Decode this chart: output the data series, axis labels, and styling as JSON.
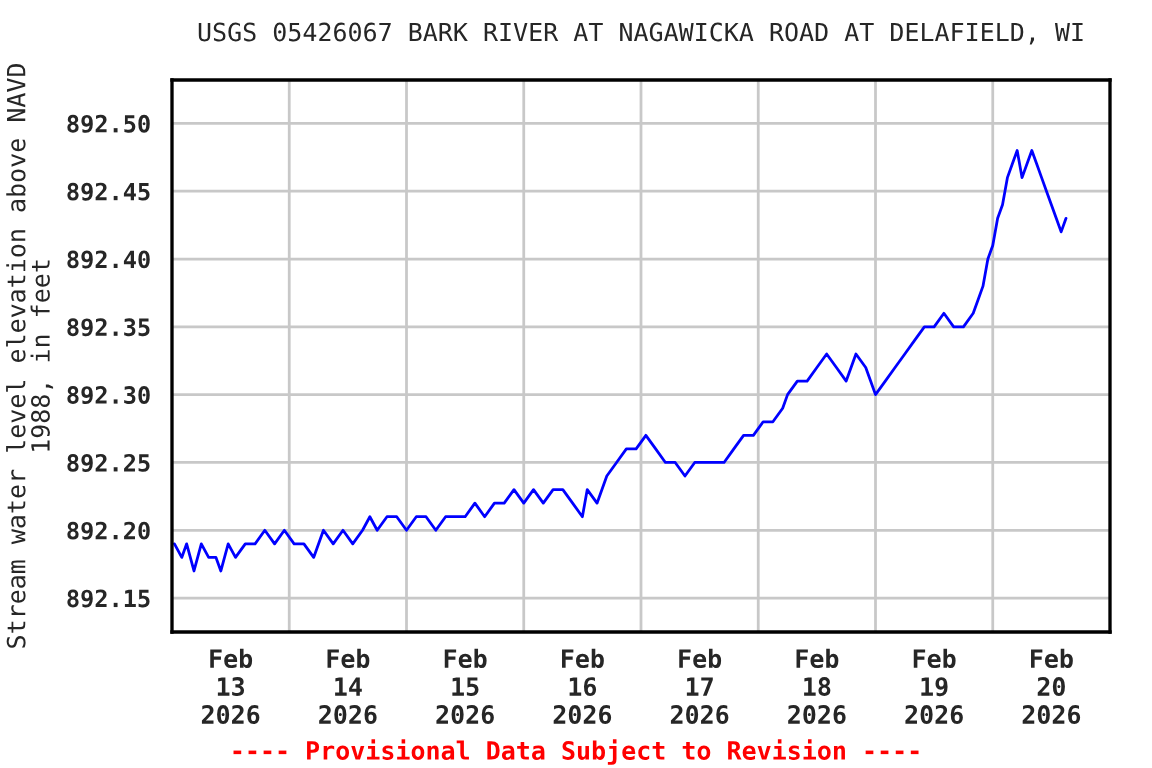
{
  "chart_data": {
    "type": "line",
    "title": "USGS 05426067 BARK RIVER AT NAGAWICKA ROAD AT DELAFIELD, WI",
    "ylabel": "Stream water level elevation above NAVD\n1988, in feet",
    "annotations": [
      "---- Provisional Data Subject to Revision ----"
    ],
    "x": [
      "2026-02-13T00:30",
      "2026-02-13T02:00",
      "2026-02-13T03:00",
      "2026-02-13T04:30",
      "2026-02-13T06:00",
      "2026-02-13T07:30",
      "2026-02-13T09:00",
      "2026-02-13T10:00",
      "2026-02-13T11:30",
      "2026-02-13T13:00",
      "2026-02-13T15:00",
      "2026-02-13T17:00",
      "2026-02-13T19:00",
      "2026-02-13T21:00",
      "2026-02-13T23:00",
      "2026-02-14T01:00",
      "2026-02-14T03:00",
      "2026-02-14T05:00",
      "2026-02-14T07:00",
      "2026-02-14T09:00",
      "2026-02-14T11:00",
      "2026-02-14T13:00",
      "2026-02-14T15:00",
      "2026-02-14T16:30",
      "2026-02-14T18:00",
      "2026-02-14T20:00",
      "2026-02-14T22:00",
      "2026-02-15T00:00",
      "2026-02-15T02:00",
      "2026-02-15T04:00",
      "2026-02-15T06:00",
      "2026-02-15T08:00",
      "2026-02-15T10:00",
      "2026-02-15T12:00",
      "2026-02-15T14:00",
      "2026-02-15T16:00",
      "2026-02-15T18:00",
      "2026-02-15T20:00",
      "2026-02-15T22:00",
      "2026-02-16T00:00",
      "2026-02-16T02:00",
      "2026-02-16T04:00",
      "2026-02-16T06:00",
      "2026-02-16T08:00",
      "2026-02-16T10:00",
      "2026-02-16T12:00",
      "2026-02-16T13:00",
      "2026-02-16T15:00",
      "2026-02-16T17:00",
      "2026-02-16T19:00",
      "2026-02-16T21:00",
      "2026-02-16T23:00",
      "2026-02-17T01:00",
      "2026-02-17T03:00",
      "2026-02-17T05:00",
      "2026-02-17T07:00",
      "2026-02-17T09:00",
      "2026-02-17T11:00",
      "2026-02-17T13:00",
      "2026-02-17T15:00",
      "2026-02-17T17:00",
      "2026-02-17T19:00",
      "2026-02-17T21:00",
      "2026-02-17T23:00",
      "2026-02-18T01:00",
      "2026-02-18T03:00",
      "2026-02-18T05:00",
      "2026-02-18T06:00",
      "2026-02-18T08:00",
      "2026-02-18T10:00",
      "2026-02-18T12:00",
      "2026-02-18T14:00",
      "2026-02-18T16:00",
      "2026-02-18T18:00",
      "2026-02-18T20:00",
      "2026-02-18T22:00",
      "2026-02-18T23:00",
      "2026-02-19T00:00",
      "2026-02-19T02:00",
      "2026-02-19T04:00",
      "2026-02-19T06:00",
      "2026-02-19T08:00",
      "2026-02-19T10:00",
      "2026-02-19T12:00",
      "2026-02-19T14:00",
      "2026-02-19T16:00",
      "2026-02-19T18:00",
      "2026-02-19T20:00",
      "2026-02-19T21:00",
      "2026-02-19T22:00",
      "2026-02-19T23:00",
      "2026-02-20T00:00",
      "2026-02-20T01:00",
      "2026-02-20T02:00",
      "2026-02-20T03:00",
      "2026-02-20T04:00",
      "2026-02-20T05:00",
      "2026-02-20T06:00",
      "2026-02-20T07:00",
      "2026-02-20T08:00",
      "2026-02-20T09:00",
      "2026-02-20T10:00",
      "2026-02-20T11:00",
      "2026-02-20T12:00",
      "2026-02-20T13:00",
      "2026-02-20T14:00",
      "2026-02-20T15:00"
    ],
    "series": [
      {
        "color": "#0000ff",
        "values": [
          892.19,
          892.18,
          892.19,
          892.17,
          892.19,
          892.18,
          892.18,
          892.17,
          892.19,
          892.18,
          892.19,
          892.19,
          892.2,
          892.19,
          892.2,
          892.19,
          892.19,
          892.18,
          892.2,
          892.19,
          892.2,
          892.19,
          892.2,
          892.21,
          892.2,
          892.21,
          892.21,
          892.2,
          892.21,
          892.21,
          892.2,
          892.21,
          892.21,
          892.21,
          892.22,
          892.21,
          892.22,
          892.22,
          892.23,
          892.22,
          892.23,
          892.22,
          892.23,
          892.23,
          892.22,
          892.21,
          892.23,
          892.22,
          892.24,
          892.25,
          892.26,
          892.26,
          892.27,
          892.26,
          892.25,
          892.25,
          892.24,
          892.25,
          892.25,
          892.25,
          892.25,
          892.26,
          892.27,
          892.27,
          892.28,
          892.28,
          892.29,
          892.3,
          892.31,
          892.31,
          892.32,
          892.33,
          892.32,
          892.31,
          892.33,
          892.32,
          892.31,
          892.3,
          892.31,
          892.32,
          892.33,
          892.34,
          892.35,
          892.35,
          892.36,
          892.35,
          892.35,
          892.36,
          892.37,
          892.38,
          892.4,
          892.41,
          892.43,
          892.44,
          892.46,
          892.47,
          892.48,
          892.46,
          892.47,
          892.48,
          892.47,
          892.46,
          892.45,
          892.44,
          892.43,
          892.42,
          892.43
        ]
      }
    ],
    "xlim": [
      "2026-02-13",
      "2026-02-21"
    ],
    "xticks": [
      {
        "value": "2026-02-13T12:00",
        "label": "Feb\n13\n2026"
      },
      {
        "value": "2026-02-14T12:00",
        "label": "Feb\n14\n2026"
      },
      {
        "value": "2026-02-15T12:00",
        "label": "Feb\n15\n2026"
      },
      {
        "value": "2026-02-16T12:00",
        "label": "Feb\n16\n2026"
      },
      {
        "value": "2026-02-17T12:00",
        "label": "Feb\n17\n2026"
      },
      {
        "value": "2026-02-18T12:00",
        "label": "Feb\n18\n2026"
      },
      {
        "value": "2026-02-19T12:00",
        "label": "Feb\n19\n2026"
      },
      {
        "value": "2026-02-20T12:00",
        "label": "Feb\n20\n2026"
      },
      {
        "value": "2026-02-14",
        "label": null
      },
      {
        "value": "2026-02-15",
        "label": null
      },
      {
        "value": "2026-02-16",
        "label": null
      },
      {
        "value": "2026-02-17",
        "label": null
      },
      {
        "value": "2026-02-18",
        "label": null
      },
      {
        "value": "2026-02-19",
        "label": null
      },
      {
        "value": "2026-02-20",
        "label": null
      }
    ],
    "ylim": [
      892.125,
      892.532
    ],
    "yticks": [
      {
        "value": 892.15,
        "label": "892.15"
      },
      {
        "value": 892.2,
        "label": "892.20"
      },
      {
        "value": 892.25,
        "label": "892.25"
      },
      {
        "value": 892.3,
        "label": "892.30"
      },
      {
        "value": 892.35,
        "label": "892.35"
      },
      {
        "value": 892.4,
        "label": "892.40"
      },
      {
        "value": 892.45,
        "label": "892.45"
      },
      {
        "value": 892.5,
        "label": "892.50"
      }
    ],
    "grid": true,
    "legend": false,
    "marker": "none",
    "line_style": "solid"
  }
}
